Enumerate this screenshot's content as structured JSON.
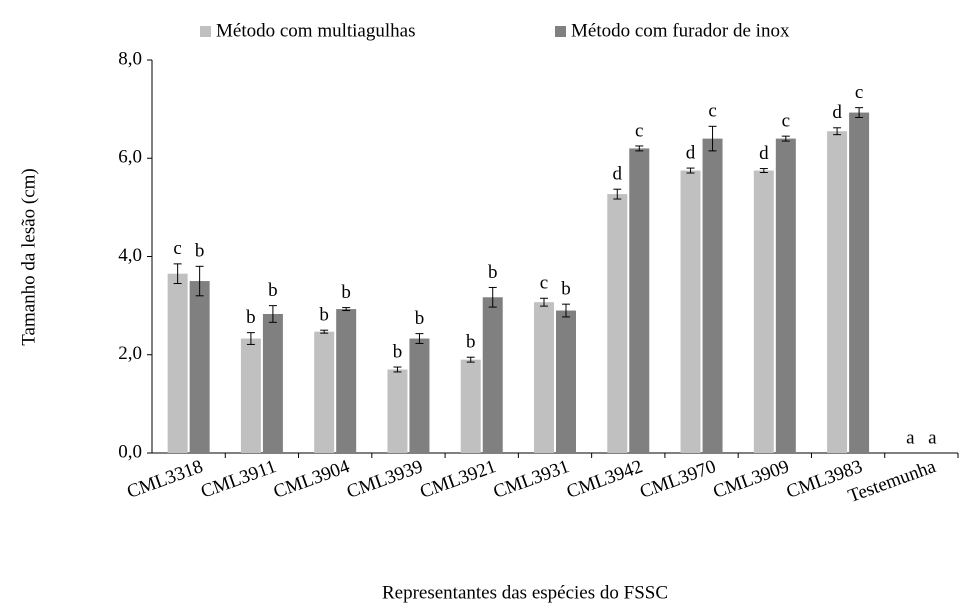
{
  "chart_data": {
    "type": "bar",
    "x_label": "Representantes das espécies do FSSC",
    "y_label": "Tamanho da lesão (cm)",
    "categories": [
      "CML3318",
      "CML3911",
      "CML3904",
      "CML3939",
      "CML3921",
      "CML3931",
      "CML3942",
      "CML3970",
      "CML3909",
      "CML3983",
      "Testemunha"
    ],
    "series": [
      {
        "name": "Método com multiagulhas",
        "color": "#c0c0c0",
        "values": [
          3.65,
          2.33,
          2.47,
          1.7,
          1.9,
          3.07,
          5.27,
          5.75,
          5.75,
          6.55,
          0
        ],
        "errors": [
          0.2,
          0.12,
          0.03,
          0.05,
          0.05,
          0.08,
          0.1,
          0.05,
          0.04,
          0.07,
          0
        ],
        "letters": [
          "c",
          "b",
          "b",
          "b",
          "b",
          "c",
          "d",
          "d",
          "d",
          "d",
          "a"
        ]
      },
      {
        "name": "Método com furador de inox",
        "color": "#808080",
        "values": [
          3.5,
          2.83,
          2.93,
          2.33,
          3.17,
          2.9,
          6.2,
          6.4,
          6.4,
          6.93,
          0
        ],
        "errors": [
          0.3,
          0.17,
          0.03,
          0.1,
          0.2,
          0.13,
          0.05,
          0.25,
          0.05,
          0.1,
          0
        ],
        "letters": [
          "b",
          "b",
          "b",
          "b",
          "b",
          "b",
          "c",
          "c",
          "c",
          "c",
          "a"
        ]
      }
    ],
    "ylim": [
      0,
      8
    ],
    "yticks": [
      {
        "value": 0,
        "label": "0,0"
      },
      {
        "value": 2,
        "label": "2,0"
      },
      {
        "value": 4,
        "label": "4,0"
      },
      {
        "value": 6,
        "label": "6,0"
      },
      {
        "value": 8,
        "label": "8,0"
      }
    ],
    "grid": false,
    "legend": "top"
  }
}
